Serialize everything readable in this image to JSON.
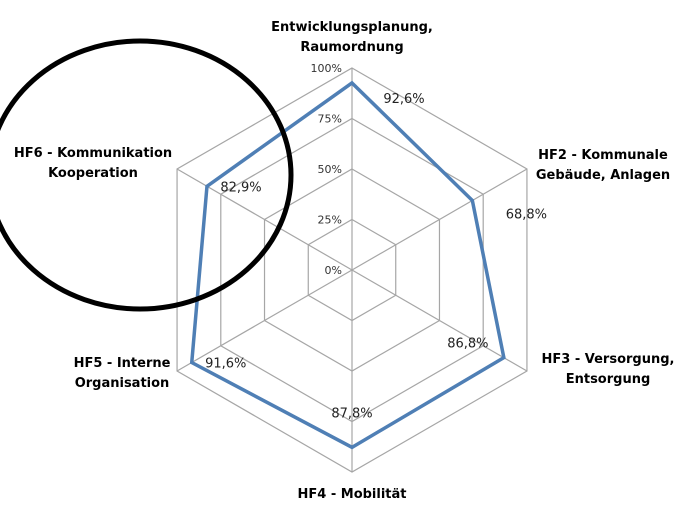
{
  "chart_data": {
    "type": "radar",
    "categories": [
      [
        "Entwicklungsplanung,",
        "Raumordnung"
      ],
      [
        "HF2 - Kommunale",
        "Gebäude, Anlagen"
      ],
      [
        "HF3 - Versorgung,",
        "Entsorgung"
      ],
      [
        "HF4 - Mobilität"
      ],
      [
        "HF5 - Interne",
        "Organisation"
      ],
      [
        "HF6 - Kommunikation",
        "Kooperation"
      ]
    ],
    "series": [
      {
        "values": [
          92.6,
          68.8,
          86.8,
          87.8,
          91.6,
          82.9
        ]
      }
    ],
    "data_labels": [
      "92,6%",
      "68,8%",
      "86,8%",
      "87,8%",
      "91,6%",
      "82,9%"
    ],
    "r_ticks": [
      "0%",
      "25%",
      "50%",
      "75%",
      "100%"
    ],
    "rlim": [
      0,
      100
    ],
    "grid": true,
    "series_color": "#4f7fb5",
    "grid_color": "#a6a6a6",
    "annotation": {
      "shape": "ellipse",
      "color": "#000000",
      "around_category": "HF6 - Kommunikation Kooperation"
    }
  }
}
